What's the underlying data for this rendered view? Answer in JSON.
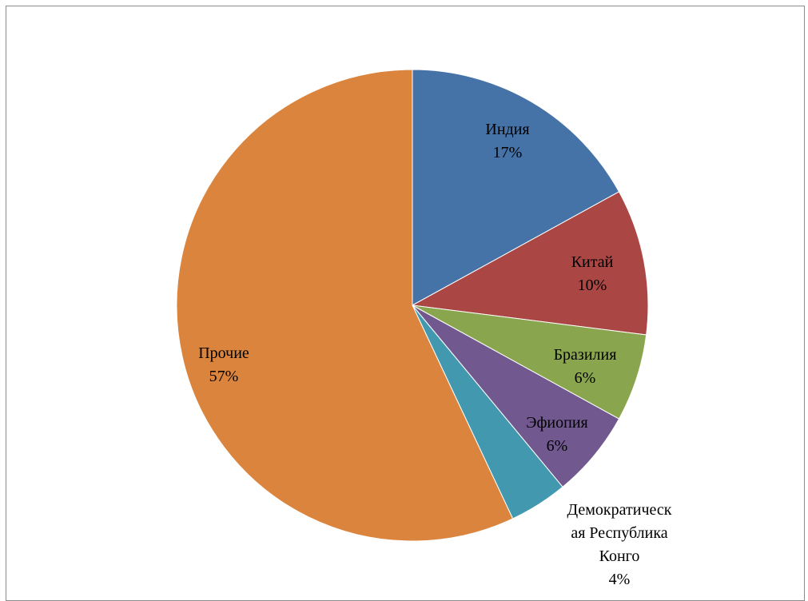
{
  "chart_data": {
    "type": "pie",
    "title": "",
    "slices": [
      {
        "label": "Индия",
        "value": 17,
        "value_label": "17%",
        "color": "#4572A7"
      },
      {
        "label": "Китай",
        "value": 10,
        "value_label": "10%",
        "color": "#AA4643"
      },
      {
        "label": "Бразилия",
        "value": 6,
        "value_label": "6%",
        "color": "#89A54E"
      },
      {
        "label": "Эфиопия",
        "value": 6,
        "value_label": "6%",
        "color": "#71588F"
      },
      {
        "label": "Демократическая Республика Конго",
        "value": 4,
        "value_label": "4%",
        "color": "#4198AF"
      },
      {
        "label": "Прочие",
        "value": 57,
        "value_label": "57%",
        "color": "#DB843D"
      }
    ],
    "legend": "none",
    "start_angle": "12 o'clock",
    "direction": "clockwise"
  }
}
